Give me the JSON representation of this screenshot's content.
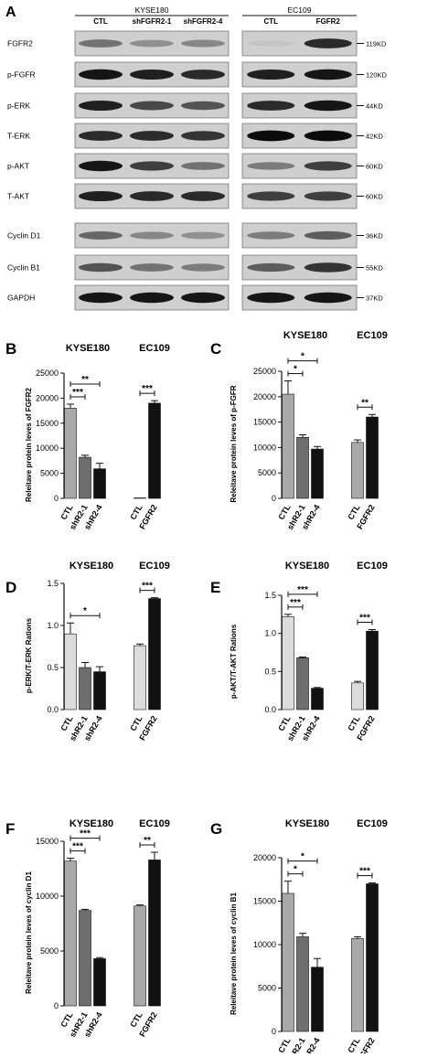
{
  "figure": {
    "panel_letters": [
      "A",
      "B",
      "C",
      "D",
      "E",
      "F",
      "G"
    ]
  },
  "blot": {
    "left_group_title": "KYSE180",
    "left_lanes": [
      "CTL",
      "shFGFR2-1",
      "shFGFR2-4"
    ],
    "right_group_title": "EC109",
    "right_lanes": [
      "CTL",
      "FGFR2"
    ],
    "rows": [
      {
        "label": "FGFR2",
        "size": "119KD",
        "left_intensity": [
          0.45,
          0.3,
          0.35
        ],
        "right_intensity": [
          0.05,
          0.8
        ]
      },
      {
        "label": "p-FGFR",
        "size": "120KD",
        "left_intensity": [
          0.9,
          0.85,
          0.8
        ],
        "right_intensity": [
          0.85,
          0.9
        ]
      },
      {
        "label": "p-ERK",
        "size": "44KD",
        "left_intensity": [
          0.85,
          0.65,
          0.6
        ],
        "right_intensity": [
          0.8,
          0.9
        ]
      },
      {
        "label": "T-ERK",
        "size": "42KD",
        "left_intensity": [
          0.8,
          0.8,
          0.75
        ],
        "right_intensity": [
          0.95,
          0.95
        ]
      },
      {
        "label": "p-AKT",
        "size": "60KD",
        "left_intensity": [
          0.9,
          0.7,
          0.45
        ],
        "right_intensity": [
          0.4,
          0.7
        ]
      },
      {
        "label": "T-AKT",
        "size": "60KD",
        "left_intensity": [
          0.85,
          0.8,
          0.8
        ],
        "right_intensity": [
          0.7,
          0.7
        ]
      },
      {
        "label": "Cyclin D1",
        "size": "36KD",
        "left_intensity": [
          0.5,
          0.35,
          0.3
        ],
        "right_intensity": [
          0.4,
          0.55
        ]
      },
      {
        "label": "Cyclin B1",
        "size": "55KD",
        "left_intensity": [
          0.6,
          0.45,
          0.4
        ],
        "right_intensity": [
          0.55,
          0.75
        ]
      },
      {
        "label": "GAPDH",
        "size": "37KD",
        "left_intensity": [
          0.9,
          0.9,
          0.9
        ],
        "right_intensity": [
          0.9,
          0.9
        ]
      }
    ]
  },
  "chart_data": [
    {
      "panel": "B",
      "type": "bar",
      "group_labels": [
        "KYSE180",
        "EC109"
      ],
      "categories": [
        "CTL",
        "shR2-1",
        "shR2-4",
        "CTL",
        "FGFR2"
      ],
      "values": [
        18000,
        8200,
        5900,
        100,
        19000
      ],
      "errors": [
        800,
        400,
        1100,
        0,
        500
      ],
      "colors": [
        "#a9a9a9",
        "#6e6e6e",
        "#111111",
        "#a9a9a9",
        "#111111"
      ],
      "ylabel": "Releitave protein leves of FGFR2",
      "ylim": [
        0,
        25000
      ],
      "yticks": [
        "0",
        "5000",
        "10000",
        "15000",
        "20000",
        "25000"
      ],
      "significance": [
        {
          "from": 0,
          "to": 1,
          "label": "***"
        },
        {
          "from": 0,
          "to": 2,
          "label": "**"
        },
        {
          "from": 3,
          "to": 4,
          "label": "***"
        }
      ]
    },
    {
      "panel": "C",
      "type": "bar",
      "group_labels": [
        "KYSE180",
        "EC109"
      ],
      "categories": [
        "CTL",
        "shR2-1",
        "shR2-4",
        "CTL",
        "FGFR2"
      ],
      "values": [
        20500,
        12000,
        9700,
        11000,
        16000
      ],
      "errors": [
        2600,
        500,
        500,
        500,
        500
      ],
      "colors": [
        "#a9a9a9",
        "#6e6e6e",
        "#111111",
        "#a9a9a9",
        "#111111"
      ],
      "ylabel": "Releitave protein leves of p-FGFR",
      "ylim": [
        0,
        25000
      ],
      "yticks": [
        "0",
        "5000",
        "10000",
        "15000",
        "20000",
        "25000"
      ],
      "significance": [
        {
          "from": 0,
          "to": 1,
          "label": "*"
        },
        {
          "from": 0,
          "to": 2,
          "label": "*"
        },
        {
          "from": 3,
          "to": 4,
          "label": "**"
        }
      ]
    },
    {
      "panel": "D",
      "type": "bar",
      "group_labels": [
        "KYSE180",
        "EC109"
      ],
      "categories": [
        "CTL",
        "shR2-1",
        "shR2-4",
        "CTL",
        "FGFR2"
      ],
      "values": [
        0.9,
        0.5,
        0.45,
        0.76,
        1.32
      ],
      "errors": [
        0.13,
        0.06,
        0.06,
        0.02,
        0.01
      ],
      "colors": [
        "#dcdcdc",
        "#6e6e6e",
        "#111111",
        "#dcdcdc",
        "#111111"
      ],
      "ylabel": "p-ERK/T-ERK Rations",
      "ylim": [
        0,
        1.5
      ],
      "yticks": [
        "0.0",
        "0.5",
        "1.0",
        "1.5"
      ],
      "significance": [
        {
          "from": 0,
          "to": 2,
          "label": "*"
        },
        {
          "from": 3,
          "to": 4,
          "label": "***"
        }
      ]
    },
    {
      "panel": "E",
      "type": "bar",
      "group_labels": [
        "KYSE180",
        "EC109"
      ],
      "categories": [
        "CTL",
        "shR2-1",
        "shR2-4",
        "CTL",
        "FGFR2"
      ],
      "values": [
        1.22,
        0.68,
        0.28,
        0.35,
        1.03
      ],
      "errors": [
        0.03,
        0.01,
        0.01,
        0.02,
        0.02
      ],
      "colors": [
        "#dcdcdc",
        "#6e6e6e",
        "#111111",
        "#dcdcdc",
        "#111111"
      ],
      "ylabel": "p-AKT/T-AKT Rations",
      "ylim": [
        0,
        1.5
      ],
      "yticks": [
        "0.0",
        "0.5",
        "1.0",
        "1.5"
      ],
      "significance": [
        {
          "from": 0,
          "to": 1,
          "label": "***"
        },
        {
          "from": 0,
          "to": 2,
          "label": "***"
        },
        {
          "from": 3,
          "to": 4,
          "label": "***"
        }
      ]
    },
    {
      "panel": "F",
      "type": "bar",
      "group_labels": [
        "KYSE180",
        "EC109"
      ],
      "categories": [
        "CTL",
        "shR2-1",
        "shR2-4",
        "CTL",
        "FGFR2"
      ],
      "values": [
        13200,
        8700,
        4300,
        9100,
        13300
      ],
      "errors": [
        250,
        100,
        100,
        100,
        700
      ],
      "colors": [
        "#a9a9a9",
        "#6e6e6e",
        "#111111",
        "#a9a9a9",
        "#111111"
      ],
      "ylabel": "Releitave protein leves of cyclin D1",
      "ylim": [
        0,
        15000
      ],
      "yticks": [
        "0",
        "5000",
        "10000",
        "15000"
      ],
      "significance": [
        {
          "from": 0,
          "to": 1,
          "label": "***"
        },
        {
          "from": 0,
          "to": 2,
          "label": "***"
        },
        {
          "from": 3,
          "to": 4,
          "label": "**"
        }
      ]
    },
    {
      "panel": "G",
      "type": "bar",
      "group_labels": [
        "KYSE180",
        "EC109"
      ],
      "categories": [
        "CTL",
        "shR2-1",
        "shR2-4",
        "CTL",
        "FGFR2"
      ],
      "values": [
        15900,
        10900,
        7400,
        10700,
        17000
      ],
      "errors": [
        1400,
        400,
        1000,
        200,
        100
      ],
      "colors": [
        "#a9a9a9",
        "#6e6e6e",
        "#111111",
        "#a9a9a9",
        "#111111"
      ],
      "ylabel": "Releitave protein leves of cyclin B1",
      "ylim": [
        0,
        20000
      ],
      "yticks": [
        "0",
        "5000",
        "10000",
        "15000",
        "20000"
      ],
      "significance": [
        {
          "from": 0,
          "to": 1,
          "label": "*"
        },
        {
          "from": 0,
          "to": 2,
          "label": "*"
        },
        {
          "from": 3,
          "to": 4,
          "label": "***"
        }
      ]
    }
  ]
}
